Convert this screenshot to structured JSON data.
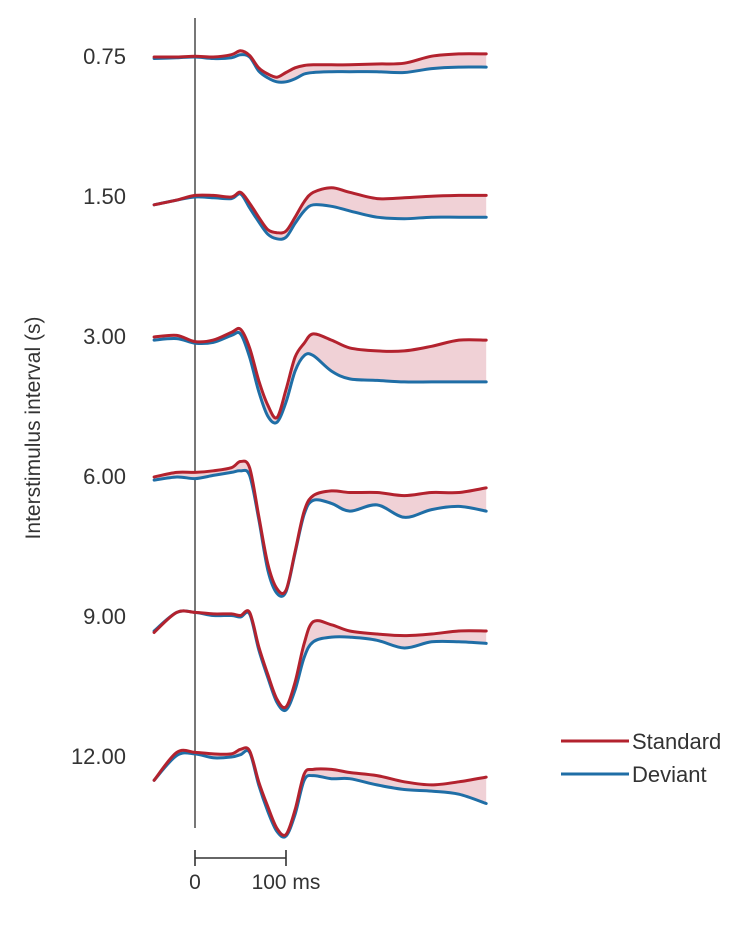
{
  "chart_data": {
    "type": "line",
    "title": "",
    "xlabel": "",
    "ylabel": "Interstimulus interval (s)",
    "scale_bar": {
      "zero_label": "0",
      "end_label": "100 ms",
      "duration_ms": 100
    },
    "x_ms": [
      -45,
      -20,
      0,
      20,
      40,
      50,
      60,
      70,
      80,
      90,
      100,
      110,
      120,
      130,
      150,
      170,
      200,
      230,
      260,
      290,
      320
    ],
    "colors": {
      "standard": "#b3222e",
      "deviant": "#1f6ea6",
      "difference_fill": "#f0d1d6"
    },
    "legend": {
      "position": "bottom-right",
      "entries": [
        "Standard",
        "Deviant"
      ]
    },
    "series": [
      {
        "name": "Standard",
        "color": "#b3222e"
      },
      {
        "name": "Deviant",
        "color": "#1f6ea6"
      }
    ],
    "traces": [
      {
        "isi": "0.75",
        "standard": [
          0.0,
          0.0,
          0.05,
          0.0,
          0.15,
          0.4,
          0.1,
          -0.7,
          -1.1,
          -1.3,
          -1.0,
          -0.7,
          -0.55,
          -0.5,
          -0.5,
          -0.5,
          -0.45,
          -0.4,
          0.05,
          0.2,
          0.2
        ],
        "deviant": [
          -0.1,
          -0.05,
          0.0,
          -0.1,
          -0.05,
          0.15,
          0.0,
          -0.9,
          -1.35,
          -1.6,
          -1.6,
          -1.4,
          -1.1,
          -1.0,
          -0.95,
          -0.95,
          -0.95,
          -1.0,
          -0.75,
          -0.65,
          -0.65
        ]
      },
      {
        "isi": "1.50",
        "standard": [
          -0.5,
          -0.2,
          0.1,
          0.1,
          0.0,
          0.3,
          -0.4,
          -1.3,
          -2.1,
          -2.3,
          -2.2,
          -1.3,
          -0.3,
          0.3,
          0.6,
          0.3,
          -0.1,
          -0.05,
          0.05,
          0.1,
          0.1
        ],
        "deviant": [
          -0.5,
          -0.2,
          0.0,
          -0.05,
          -0.1,
          0.2,
          -0.7,
          -1.6,
          -2.4,
          -2.7,
          -2.6,
          -1.7,
          -0.9,
          -0.5,
          -0.6,
          -0.9,
          -1.3,
          -1.4,
          -1.3,
          -1.3,
          -1.3
        ]
      },
      {
        "isi": "3.00",
        "standard": [
          0.0,
          0.1,
          -0.3,
          -0.2,
          0.3,
          0.5,
          -0.7,
          -2.8,
          -4.4,
          -5.2,
          -3.4,
          -1.3,
          -0.4,
          0.2,
          -0.2,
          -0.7,
          -0.9,
          -0.9,
          -0.6,
          -0.2,
          -0.2
        ],
        "deviant": [
          -0.2,
          -0.1,
          -0.4,
          -0.35,
          0.1,
          0.2,
          -1.3,
          -3.5,
          -5.1,
          -5.5,
          -4.2,
          -2.2,
          -1.2,
          -1.2,
          -2.2,
          -2.7,
          -2.8,
          -2.9,
          -2.9,
          -2.9,
          -2.9
        ]
      },
      {
        "isi": "6.00",
        "standard": [
          0.0,
          0.3,
          0.3,
          0.4,
          0.6,
          1.0,
          0.6,
          -2.5,
          -5.6,
          -7.2,
          -7.3,
          -4.8,
          -2.2,
          -1.2,
          -0.9,
          -1.0,
          -1.0,
          -1.2,
          -1.0,
          -1.0,
          -0.7
        ],
        "deviant": [
          -0.2,
          0.0,
          -0.1,
          0.1,
          0.3,
          0.4,
          0.1,
          -2.7,
          -6.0,
          -7.5,
          -7.4,
          -4.9,
          -2.4,
          -1.5,
          -1.7,
          -2.2,
          -1.8,
          -2.6,
          -2.1,
          -1.9,
          -2.2
        ]
      },
      {
        "isi": "9.00",
        "standard": [
          -1.0,
          0.3,
          0.3,
          0.2,
          0.2,
          0.1,
          0.3,
          -1.9,
          -3.7,
          -5.3,
          -5.8,
          -4.2,
          -1.7,
          -0.3,
          -0.5,
          -0.9,
          -1.1,
          -1.2,
          -1.1,
          -0.9,
          -0.9
        ],
        "deviant": [
          -0.9,
          0.3,
          0.3,
          0.1,
          0.1,
          0.0,
          0.2,
          -2.1,
          -3.9,
          -5.5,
          -6.0,
          -4.7,
          -2.6,
          -1.6,
          -1.3,
          -1.3,
          -1.5,
          -2.0,
          -1.6,
          -1.6,
          -1.7
        ]
      },
      {
        "isi": "12.00",
        "standard": [
          -1.5,
          0.3,
          0.3,
          0.2,
          0.2,
          0.5,
          0.4,
          -1.6,
          -3.2,
          -4.6,
          -5.0,
          -3.4,
          -1.1,
          -0.8,
          -0.8,
          -1.0,
          -1.2,
          -1.6,
          -1.8,
          -1.6,
          -1.3
        ],
        "deviant": [
          -1.5,
          0.1,
          0.2,
          -0.05,
          0.0,
          0.15,
          0.3,
          -1.8,
          -3.5,
          -4.8,
          -5.1,
          -3.7,
          -1.5,
          -1.2,
          -1.4,
          -1.4,
          -1.8,
          -2.1,
          -2.2,
          -2.4,
          -3.0
        ]
      }
    ]
  }
}
